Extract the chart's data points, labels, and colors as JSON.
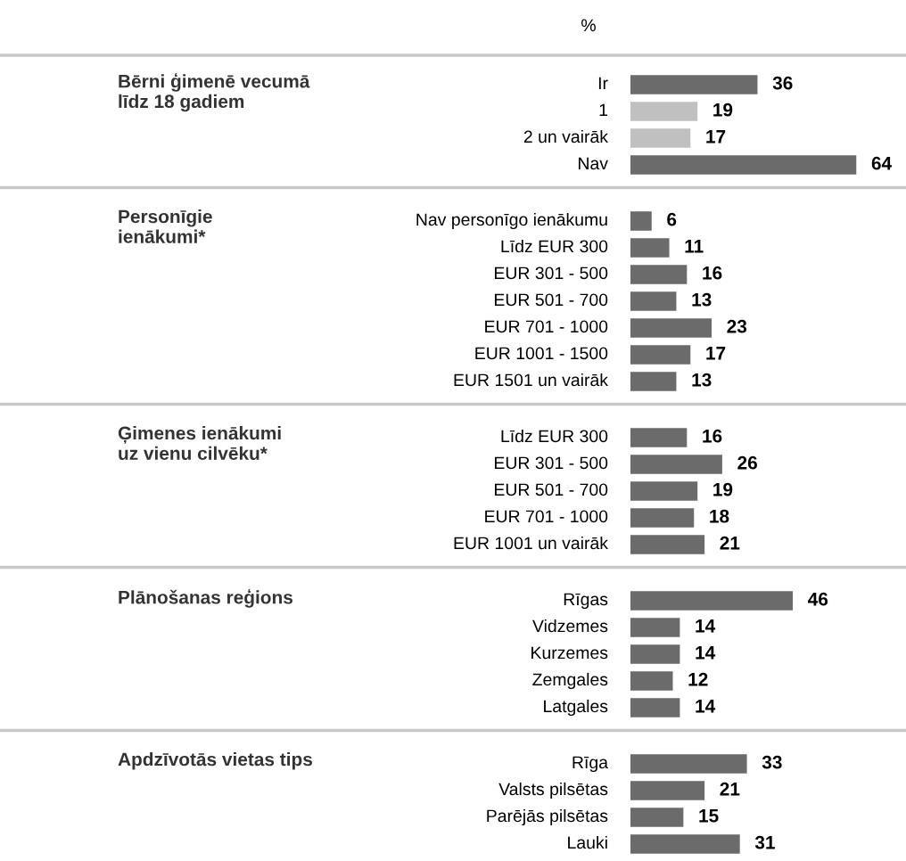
{
  "chart_data": [
    {
      "type": "bar",
      "orientation": "horizontal",
      "ylabel": "Bērni ģimenē vecumā\nlīdz 18 gadiem",
      "annotations": [
        "%"
      ],
      "categories": [
        "Ir",
        "1",
        "2 un vairāk",
        "Nav"
      ],
      "values": [
        36,
        19,
        17,
        64
      ],
      "colors": [
        "#6b6b6b",
        "#c0c0c0",
        "#c0c0c0",
        "#6b6b6b"
      ],
      "data_labels": true
    },
    {
      "type": "bar",
      "orientation": "horizontal",
      "ylabel": "Personīgie\nienākumi*",
      "categories": [
        "Nav personīgo ienākumu",
        "Līdz EUR 300",
        "EUR 301 - 500",
        "EUR 501 - 700",
        "EUR 701 - 1000",
        "EUR 1001 - 1500",
        "EUR 1501 un vairāk"
      ],
      "values": [
        6,
        11,
        16,
        13,
        23,
        17,
        13
      ],
      "colors": [
        "#6b6b6b",
        "#6b6b6b",
        "#6b6b6b",
        "#6b6b6b",
        "#6b6b6b",
        "#6b6b6b",
        "#6b6b6b"
      ],
      "data_labels": true
    },
    {
      "type": "bar",
      "orientation": "horizontal",
      "ylabel": "Ģimenes ienākumi\nuz vienu cilvēku*",
      "categories": [
        "Līdz EUR 300",
        "EUR 301 - 500",
        "EUR 501 - 700",
        "EUR 701 - 1000",
        "EUR 1001 un vairāk"
      ],
      "values": [
        16,
        26,
        19,
        18,
        21
      ],
      "colors": [
        "#6b6b6b",
        "#6b6b6b",
        "#6b6b6b",
        "#6b6b6b",
        "#6b6b6b"
      ],
      "data_labels": true
    },
    {
      "type": "bar",
      "orientation": "horizontal",
      "ylabel": "Plānošanas reģions",
      "categories": [
        "Rīgas",
        "Vidzemes",
        "Kurzemes",
        "Zemgales",
        "Latgales"
      ],
      "values": [
        46,
        14,
        14,
        12,
        14
      ],
      "colors": [
        "#6b6b6b",
        "#6b6b6b",
        "#6b6b6b",
        "#6b6b6b",
        "#6b6b6b"
      ],
      "data_labels": true
    },
    {
      "type": "bar",
      "orientation": "horizontal",
      "ylabel": "Apdzīvotās vietas tips",
      "categories": [
        "Rīga",
        "Valsts pilsētas",
        "Parējās pilsētas",
        "Lauki"
      ],
      "values": [
        33,
        21,
        15,
        31
      ],
      "colors": [
        "#6b6b6b",
        "#6b6b6b",
        "#6b6b6b",
        "#6b6b6b"
      ],
      "data_labels": true
    }
  ]
}
